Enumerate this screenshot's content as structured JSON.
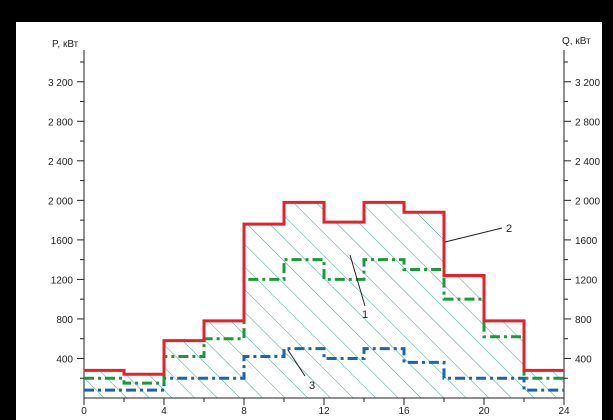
{
  "chart_data": {
    "type": "step-line",
    "left_axis_label": "P, кВт",
    "right_axis_label": "Q, кВт",
    "x_ticks": [
      "0",
      "4",
      "8",
      "12",
      "16",
      "20",
      "24"
    ],
    "y_ticks": [
      "400",
      "800",
      "1200",
      "1600",
      "2 000",
      "2 400",
      "2 800",
      "3 200"
    ],
    "xlim": [
      0,
      24
    ],
    "ylim": [
      0,
      3400
    ],
    "annotations": [
      "1",
      "2",
      "3"
    ],
    "hatched_area": "under series 2",
    "series": [
      {
        "label": "2",
        "color": "#e8202a",
        "style": "solid",
        "steps": [
          {
            "x0": 0,
            "x1": 2,
            "y": 280
          },
          {
            "x0": 2,
            "x1": 4,
            "y": 240
          },
          {
            "x0": 4,
            "x1": 6,
            "y": 580
          },
          {
            "x0": 6,
            "x1": 8,
            "y": 780
          },
          {
            "x0": 8,
            "x1": 10,
            "y": 1760
          },
          {
            "x0": 10,
            "x1": 12,
            "y": 1980
          },
          {
            "x0": 12,
            "x1": 14,
            "y": 1780
          },
          {
            "x0": 14,
            "x1": 16,
            "y": 1980
          },
          {
            "x0": 16,
            "x1": 18,
            "y": 1880
          },
          {
            "x0": 18,
            "x1": 20,
            "y": 1240
          },
          {
            "x0": 20,
            "x1": 22,
            "y": 780
          },
          {
            "x0": 22,
            "x1": 24,
            "y": 280
          }
        ]
      },
      {
        "label": "1",
        "color": "#1a9a3a",
        "style": "dashdot",
        "steps": [
          {
            "x0": 0,
            "x1": 2,
            "y": 200
          },
          {
            "x0": 2,
            "x1": 4,
            "y": 150
          },
          {
            "x0": 4,
            "x1": 6,
            "y": 420
          },
          {
            "x0": 6,
            "x1": 8,
            "y": 600
          },
          {
            "x0": 8,
            "x1": 10,
            "y": 1200
          },
          {
            "x0": 10,
            "x1": 12,
            "y": 1400
          },
          {
            "x0": 12,
            "x1": 14,
            "y": 1200
          },
          {
            "x0": 14,
            "x1": 16,
            "y": 1400
          },
          {
            "x0": 16,
            "x1": 18,
            "y": 1300
          },
          {
            "x0": 18,
            "x1": 20,
            "y": 1000
          },
          {
            "x0": 20,
            "x1": 22,
            "y": 620
          },
          {
            "x0": 22,
            "x1": 24,
            "y": 200
          }
        ]
      },
      {
        "label": "3",
        "color": "#1a64b4",
        "style": "dashdot",
        "steps": [
          {
            "x0": 0,
            "x1": 2,
            "y": 80
          },
          {
            "x0": 2,
            "x1": 4,
            "y": 80
          },
          {
            "x0": 4,
            "x1": 6,
            "y": 200
          },
          {
            "x0": 6,
            "x1": 8,
            "y": 200
          },
          {
            "x0": 8,
            "x1": 10,
            "y": 420
          },
          {
            "x0": 10,
            "x1": 12,
            "y": 500
          },
          {
            "x0": 12,
            "x1": 14,
            "y": 400
          },
          {
            "x0": 14,
            "x1": 16,
            "y": 500
          },
          {
            "x0": 16,
            "x1": 18,
            "y": 360
          },
          {
            "x0": 18,
            "x1": 20,
            "y": 200
          },
          {
            "x0": 20,
            "x1": 22,
            "y": 200
          },
          {
            "x0": 22,
            "x1": 24,
            "y": 80
          }
        ]
      }
    ]
  }
}
